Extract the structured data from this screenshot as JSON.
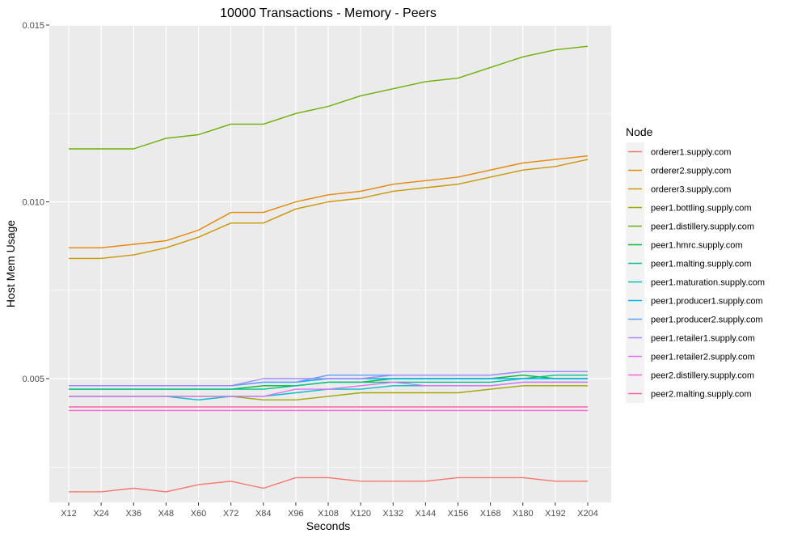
{
  "chart_data": {
    "type": "line",
    "title": "10000 Transactions - Memory - Peers",
    "xlabel": "Seconds",
    "ylabel": "Host Mem Usage",
    "categories": [
      "X12",
      "X24",
      "X36",
      "X48",
      "X60",
      "X72",
      "X84",
      "X96",
      "X108",
      "X120",
      "X132",
      "X144",
      "X156",
      "X168",
      "X180",
      "X192",
      "X204"
    ],
    "ylim": [
      0.0015,
      0.015
    ],
    "yticks": [
      0.005,
      0.01,
      0.015
    ],
    "ytick_labels": [
      "0.005",
      "0.010",
      "0.015"
    ],
    "grid": true,
    "legend": {
      "title": "Node",
      "placement": "right"
    },
    "series": [
      {
        "name": "orderer1.supply.com",
        "color": "#F8766D",
        "values": [
          0.0018,
          0.0018,
          0.0019,
          0.0018,
          0.002,
          0.0021,
          0.0019,
          0.0022,
          0.0022,
          0.0021,
          0.0021,
          0.0021,
          0.0022,
          0.0022,
          0.0022,
          0.0021,
          0.0021
        ]
      },
      {
        "name": "orderer2.supply.com",
        "color": "#E58700",
        "values": [
          0.0087,
          0.0087,
          0.0088,
          0.0089,
          0.0092,
          0.0097,
          0.0097,
          0.01,
          0.0102,
          0.0103,
          0.0105,
          0.0106,
          0.0107,
          0.0109,
          0.0111,
          0.0112,
          0.0113
        ]
      },
      {
        "name": "orderer3.supply.com",
        "color": "#C99800",
        "values": [
          0.0084,
          0.0084,
          0.0085,
          0.0087,
          0.009,
          0.0094,
          0.0094,
          0.0098,
          0.01,
          0.0101,
          0.0103,
          0.0104,
          0.0105,
          0.0107,
          0.0109,
          0.011,
          0.0112
        ]
      },
      {
        "name": "peer1.bottling.supply.com",
        "color": "#A3A500",
        "values": [
          0.0045,
          0.0045,
          0.0045,
          0.0045,
          0.0045,
          0.0045,
          0.0044,
          0.0044,
          0.0045,
          0.0046,
          0.0046,
          0.0046,
          0.0046,
          0.0047,
          0.0048,
          0.0048,
          0.0048
        ]
      },
      {
        "name": "peer1.distillery.supply.com",
        "color": "#6BB100",
        "values": [
          0.0115,
          0.0115,
          0.0115,
          0.0118,
          0.0119,
          0.0122,
          0.0122,
          0.0125,
          0.0127,
          0.013,
          0.0132,
          0.0134,
          0.0135,
          0.0138,
          0.0141,
          0.0143,
          0.0144
        ]
      },
      {
        "name": "peer1.hmrc.supply.com",
        "color": "#00BA38",
        "values": [
          0.0047,
          0.0047,
          0.0047,
          0.0047,
          0.0047,
          0.0047,
          0.0048,
          0.0048,
          0.0049,
          0.0049,
          0.005,
          0.005,
          0.005,
          0.005,
          0.0051,
          0.005,
          0.005
        ]
      },
      {
        "name": "peer1.malting.supply.com",
        "color": "#00C08B",
        "values": [
          0.0047,
          0.0047,
          0.0047,
          0.0047,
          0.0047,
          0.0047,
          0.0047,
          0.0048,
          0.0049,
          0.0049,
          0.0049,
          0.0049,
          0.0049,
          0.0049,
          0.005,
          0.0051,
          0.0051
        ]
      },
      {
        "name": "peer1.maturation.supply.com",
        "color": "#00BFC4",
        "values": [
          0.0045,
          0.0045,
          0.0045,
          0.0045,
          0.0044,
          0.0045,
          0.0045,
          0.0046,
          0.0047,
          0.0047,
          0.0048,
          0.0048,
          0.0048,
          0.0048,
          0.0049,
          0.0049,
          0.0049
        ]
      },
      {
        "name": "peer1.producer1.supply.com",
        "color": "#00B4EF",
        "values": [
          0.0048,
          0.0048,
          0.0048,
          0.0048,
          0.0048,
          0.0048,
          0.0049,
          0.0049,
          0.005,
          0.005,
          0.005,
          0.005,
          0.005,
          0.005,
          0.005,
          0.005,
          0.005
        ]
      },
      {
        "name": "peer1.producer2.supply.com",
        "color": "#619CFF",
        "values": [
          0.0048,
          0.0048,
          0.0048,
          0.0048,
          0.0048,
          0.0048,
          0.0049,
          0.0049,
          0.0051,
          0.0051,
          0.0051,
          0.0051,
          0.0051,
          0.0051,
          0.0052,
          0.0052,
          0.0052
        ]
      },
      {
        "name": "peer1.retailer1.supply.com",
        "color": "#A58AFF",
        "values": [
          0.0048,
          0.0048,
          0.0048,
          0.0048,
          0.0048,
          0.0048,
          0.005,
          0.005,
          0.005,
          0.005,
          0.0051,
          0.0051,
          0.0051,
          0.0051,
          0.0052,
          0.0052,
          0.0052
        ]
      },
      {
        "name": "peer1.retailer2.supply.com",
        "color": "#DF70F8",
        "values": [
          0.0045,
          0.0045,
          0.0045,
          0.0045,
          0.0045,
          0.0045,
          0.0045,
          0.0047,
          0.0047,
          0.0048,
          0.0049,
          0.0048,
          0.0048,
          0.0048,
          0.0049,
          0.0049,
          0.0049
        ]
      },
      {
        "name": "peer2.distillery.supply.com",
        "color": "#FB61D7",
        "values": [
          0.0041,
          0.0041,
          0.0041,
          0.0041,
          0.0041,
          0.0041,
          0.0041,
          0.0041,
          0.0041,
          0.0041,
          0.0041,
          0.0041,
          0.0041,
          0.0041,
          0.0041,
          0.0041,
          0.0041
        ]
      },
      {
        "name": "peer2.malting.supply.com",
        "color": "#FF66A8",
        "values": [
          0.0042,
          0.0042,
          0.0042,
          0.0042,
          0.0042,
          0.0042,
          0.0042,
          0.0042,
          0.0042,
          0.0042,
          0.0042,
          0.0042,
          0.0042,
          0.0042,
          0.0042,
          0.0042,
          0.0042
        ]
      }
    ]
  }
}
